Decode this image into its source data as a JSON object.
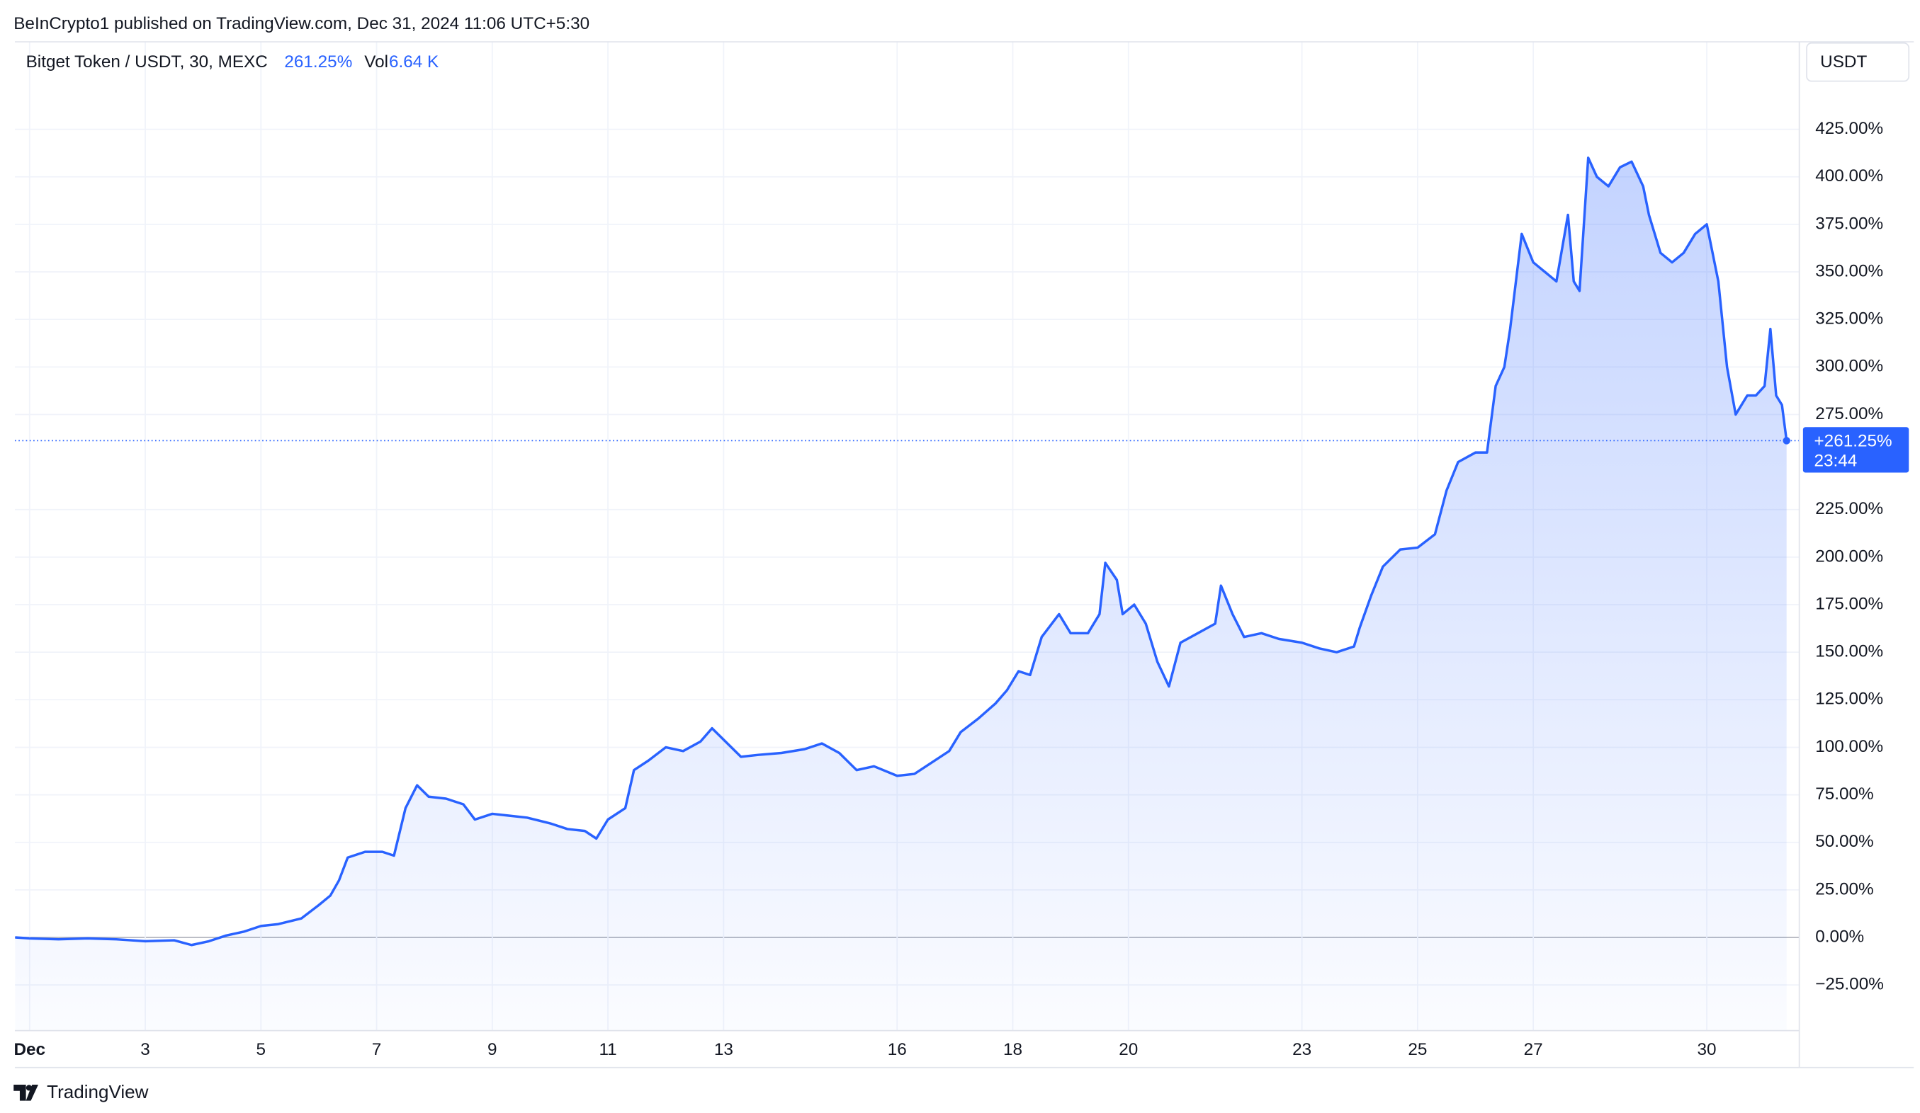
{
  "header": {
    "published": "BeInCrypto1 published on TradingView.com, Dec 31, 2024 11:06 UTC+5:30"
  },
  "chart_data": {
    "type": "area",
    "symbol": "Bitget Token / USDT, 30, MEXC",
    "change_label": "261.25%",
    "volume_label": "Vol",
    "volume": "6.64 K",
    "currency": "USDT",
    "price_tag": "+261.25%",
    "countdown": "23:44",
    "color": "#2962ff",
    "grid": true,
    "x": [
      0.75,
      1,
      1.5,
      2,
      2.5,
      3,
      3.5,
      3.8,
      4.1,
      4.4,
      4.7,
      5,
      5.3,
      5.7,
      6,
      6.2,
      6.35,
      6.5,
      6.8,
      7.1,
      7.3,
      7.5,
      7.7,
      7.9,
      8.2,
      8.5,
      8.7,
      9,
      9.3,
      9.6,
      10,
      10.3,
      10.6,
      10.8,
      11,
      11.3,
      11.45,
      11.7,
      12,
      12.3,
      12.6,
      12.8,
      13,
      13.3,
      13.6,
      14,
      14.4,
      14.7,
      15,
      15.3,
      15.6,
      16,
      16.3,
      16.6,
      16.9,
      17.1,
      17.4,
      17.7,
      17.9,
      18.1,
      18.3,
      18.5,
      18.8,
      19,
      19.3,
      19.5,
      19.6,
      19.8,
      19.9,
      20.1,
      20.3,
      20.5,
      20.7,
      20.9,
      21.2,
      21.5,
      21.6,
      21.8,
      22,
      22.3,
      22.6,
      23,
      23.3,
      23.6,
      23.9,
      24,
      24.2,
      24.4,
      24.7,
      25,
      25.3,
      25.5,
      25.7,
      26,
      26.2,
      26.35,
      26.5,
      26.6,
      26.8,
      27,
      27.2,
      27.4,
      27.6,
      27.7,
      27.8,
      27.95,
      28.1,
      28.3,
      28.5,
      28.7,
      28.9,
      29,
      29.2,
      29.4,
      29.6,
      29.8,
      30,
      30.2,
      30.35,
      30.5,
      30.7,
      30.85,
      31,
      31.1,
      31.2,
      31.3,
      31.38
    ],
    "values": [
      0,
      -0.5,
      -1,
      -0.5,
      -1,
      -2,
      -1.5,
      -4,
      -2,
      1,
      3,
      6,
      7,
      10,
      17,
      22,
      30,
      42,
      45,
      45,
      43,
      68,
      80,
      74,
      73,
      70,
      62,
      65,
      64,
      63,
      60,
      57,
      56,
      52,
      62,
      68,
      88,
      93,
      100,
      98,
      103,
      110,
      104,
      95,
      96,
      97,
      99,
      102,
      97,
      88,
      90,
      85,
      86,
      92,
      98,
      108,
      115,
      123,
      130,
      140,
      138,
      158,
      170,
      160,
      160,
      170,
      197,
      188,
      170,
      175,
      165,
      145,
      132,
      155,
      160,
      165,
      185,
      170,
      158,
      160,
      157,
      155,
      152,
      150,
      153,
      163,
      180,
      195,
      204,
      205,
      212,
      235,
      250,
      255,
      255,
      290,
      300,
      320,
      370,
      355,
      350,
      345,
      380,
      345,
      340,
      410,
      400,
      395,
      405,
      408,
      395,
      380,
      360,
      355,
      360,
      370,
      375,
      345,
      300,
      275,
      285,
      285,
      290,
      320,
      285,
      280,
      261.25
    ],
    "xlim": [
      0.745,
      31.6
    ],
    "xticks": [
      {
        "value": 1,
        "label": "Dec"
      },
      3,
      5,
      7,
      9,
      11,
      13,
      16,
      18,
      20,
      23,
      25,
      27,
      30
    ],
    "ylim": [
      -49,
      471
    ],
    "yticks": [
      {
        "value": -25,
        "label": "−25.00%"
      },
      {
        "value": 0,
        "label": "0.00%"
      },
      {
        "value": 25,
        "label": "25.00%"
      },
      {
        "value": 50,
        "label": "50.00%"
      },
      {
        "value": 75,
        "label": "75.00%"
      },
      {
        "value": 100,
        "label": "100.00%"
      },
      {
        "value": 125,
        "label": "125.00%"
      },
      {
        "value": 150,
        "label": "150.00%"
      },
      {
        "value": 175,
        "label": "175.00%"
      },
      {
        "value": 200,
        "label": "200.00%"
      },
      {
        "value": 225,
        "label": "225.00%"
      },
      {
        "value": 275,
        "label": "275.00%"
      },
      {
        "value": 300,
        "label": "300.00%"
      },
      {
        "value": 325,
        "label": "325.00%"
      },
      {
        "value": 350,
        "label": "350.00%"
      },
      {
        "value": 375,
        "label": "375.00%"
      },
      {
        "value": 400,
        "label": "400.00%"
      },
      {
        "value": 425,
        "label": "425.00%"
      }
    ]
  },
  "footer": {
    "brand": "TradingView"
  }
}
